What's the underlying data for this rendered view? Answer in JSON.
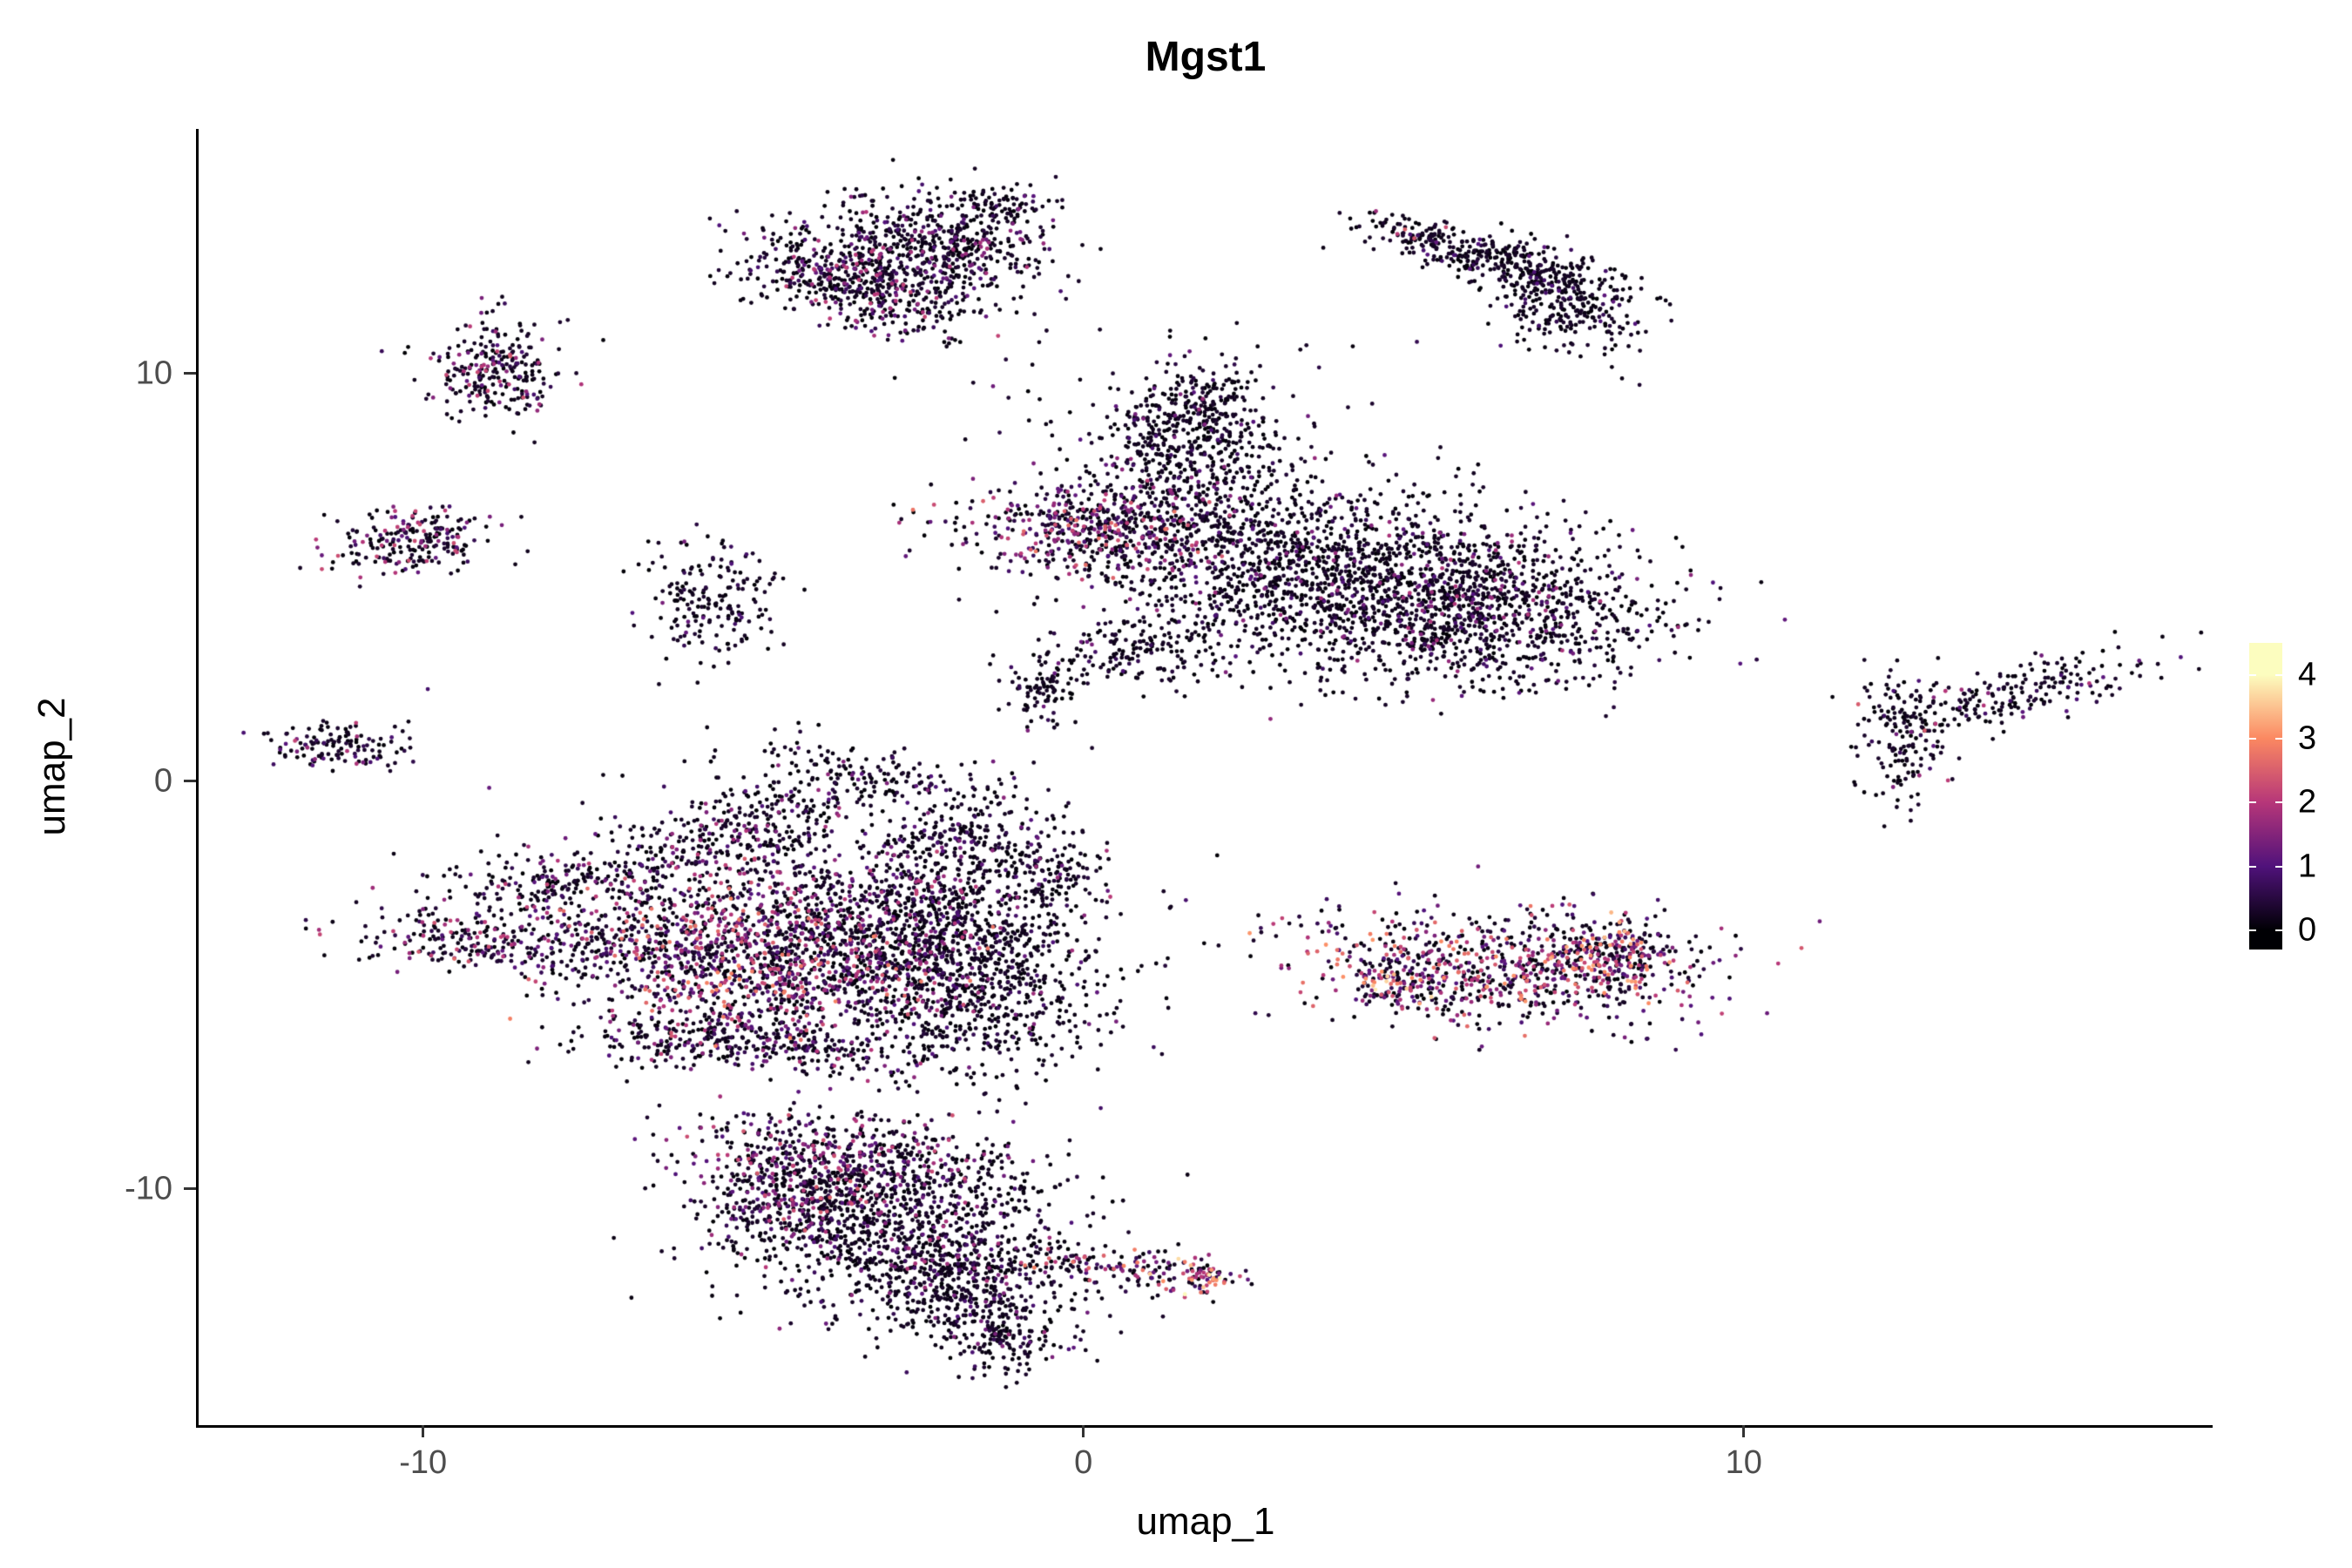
{
  "figure": {
    "title": "Mgst1",
    "xlabel": "umap_1",
    "ylabel": "umap_2"
  },
  "chart_data": {
    "type": "scatter",
    "title": "Mgst1",
    "xlabel": "umap_1",
    "ylabel": "umap_2",
    "xlim": [
      -13.4,
      17.1
    ],
    "ylim": [
      -15.8,
      16.0
    ],
    "x_ticks": [
      "-10",
      "0",
      "10"
    ],
    "x_tick_values": [
      -10,
      0,
      10
    ],
    "y_ticks": [
      "-10",
      "0",
      "10"
    ],
    "y_tick_values": [
      -10,
      0,
      10
    ],
    "grid": false,
    "legend_position": "right",
    "point_radius_px": 2.4,
    "colorbar": {
      "tick_labels": [
        "4",
        "3",
        "2",
        "1",
        "0"
      ],
      "tick_values": [
        4,
        3,
        2,
        1,
        0
      ],
      "vmin": 0,
      "vmax": 4,
      "stop_values": [
        0,
        1,
        2,
        3,
        4
      ],
      "stop_colors": [
        "#000004",
        "#50127B",
        "#B63679",
        "#FB8861",
        "#FCFDBF"
      ]
    },
    "clusters": [
      {
        "name": "top-center-a",
        "cx": -3.4,
        "cy": 12.2,
        "sx": 0.95,
        "sy": 0.5,
        "rot": -25,
        "n": 550,
        "pz": 0.55,
        "hi": 2.2
      },
      {
        "name": "top-center-b",
        "cx": -2.2,
        "cy": 13.2,
        "sx": 0.85,
        "sy": 0.55,
        "rot": -20,
        "n": 500,
        "pz": 0.6,
        "hi": 2.0
      },
      {
        "name": "top-center-tail",
        "cx": -1.2,
        "cy": 14.1,
        "sx": 0.45,
        "sy": 0.25,
        "rot": -10,
        "n": 90,
        "pz": 0.7,
        "hi": 1.5
      },
      {
        "name": "top-right-tip",
        "cx": 5.0,
        "cy": 13.5,
        "sx": 0.3,
        "sy": 0.18,
        "rot": -20,
        "n": 50,
        "pz": 0.8,
        "hi": 2.8
      },
      {
        "name": "top-right-a",
        "cx": 6.2,
        "cy": 12.8,
        "sx": 1.0,
        "sy": 0.3,
        "rot": -22,
        "n": 330,
        "pz": 0.85,
        "hi": 1.2
      },
      {
        "name": "top-right-b",
        "cx": 7.3,
        "cy": 11.7,
        "sx": 0.65,
        "sy": 0.5,
        "rot": -45,
        "n": 260,
        "pz": 0.85,
        "hi": 1.2
      },
      {
        "name": "left-upper",
        "cx": -8.9,
        "cy": 10.1,
        "sx": 0.5,
        "sy": 0.6,
        "rot": 0,
        "n": 260,
        "pz": 0.5,
        "hi": 2.5
      },
      {
        "name": "left-mid",
        "cx": -10.2,
        "cy": 5.9,
        "sx": 0.6,
        "sy": 0.38,
        "rot": 8,
        "n": 220,
        "pz": 0.5,
        "hi": 2.3
      },
      {
        "name": "left-sparse",
        "cx": -5.6,
        "cy": 4.4,
        "sx": 0.55,
        "sy": 0.8,
        "rot": 0,
        "n": 190,
        "pz": 0.8,
        "hi": 1.5
      },
      {
        "name": "left-tiny",
        "cx": -11.3,
        "cy": 0.9,
        "sx": 0.5,
        "sy": 0.3,
        "rot": 0,
        "n": 130,
        "pz": 0.6,
        "hi": 2.2
      },
      {
        "name": "central-left-pink",
        "cx": 0.2,
        "cy": 6.2,
        "sx": 1.15,
        "sy": 0.6,
        "rot": -5,
        "n": 520,
        "pz": 0.35,
        "hi": 2.8
      },
      {
        "name": "central-upper",
        "cx": 1.6,
        "cy": 7.3,
        "sx": 0.8,
        "sy": 0.9,
        "rot": 0,
        "n": 380,
        "pz": 0.7,
        "hi": 1.8
      },
      {
        "name": "central-knob",
        "cx": 1.7,
        "cy": 9.0,
        "sx": 0.55,
        "sy": 0.6,
        "rot": 0,
        "n": 260,
        "pz": 0.8,
        "hi": 1.5
      },
      {
        "name": "central-main",
        "cx": 3.6,
        "cy": 5.0,
        "sx": 1.7,
        "sy": 1.15,
        "rot": -10,
        "n": 1400,
        "pz": 0.78,
        "hi": 1.8
      },
      {
        "name": "central-right",
        "cx": 6.1,
        "cy": 4.2,
        "sx": 1.35,
        "sy": 0.95,
        "rot": -15,
        "n": 950,
        "pz": 0.75,
        "hi": 2.0
      },
      {
        "name": "central-lower-strand",
        "cx": 0.9,
        "cy": 3.2,
        "sx": 0.75,
        "sy": 0.4,
        "rot": 5,
        "n": 160,
        "pz": 0.8,
        "hi": 1.5
      },
      {
        "name": "central-small-blob",
        "cx": -0.6,
        "cy": 2.3,
        "sx": 0.3,
        "sy": 0.45,
        "rot": 0,
        "n": 90,
        "pz": 0.75,
        "hi": 1.5
      },
      {
        "name": "central-noise",
        "cx": 1.5,
        "cy": 8.3,
        "sx": 1.5,
        "sy": 1.5,
        "rot": 0,
        "n": 120,
        "pz": 0.8,
        "hi": 1.2
      },
      {
        "name": "right-branch-a",
        "cx": 12.4,
        "cy": 1.1,
        "sx": 0.35,
        "sy": 0.85,
        "rot": 0,
        "n": 170,
        "pz": 0.8,
        "hi": 2.5
      },
      {
        "name": "right-branch-b",
        "cx": 14.6,
        "cy": 2.3,
        "sx": 0.85,
        "sy": 0.35,
        "rot": 25,
        "n": 150,
        "pz": 0.8,
        "hi": 2.0
      },
      {
        "name": "right-branch-link",
        "cx": 13.4,
        "cy": 1.8,
        "sx": 0.6,
        "sy": 0.25,
        "rot": 15,
        "n": 50,
        "pz": 0.85,
        "hi": 1.2
      },
      {
        "name": "right-oval-main",
        "cx": 6.3,
        "cy": -4.6,
        "sx": 1.6,
        "sy": 0.7,
        "rot": -8,
        "n": 750,
        "pz": 0.25,
        "hi": 3.2
      },
      {
        "name": "right-oval-right",
        "cx": 8.1,
        "cy": -4.2,
        "sx": 0.5,
        "sy": 0.45,
        "rot": -30,
        "n": 220,
        "pz": 0.2,
        "hi": 3.5
      },
      {
        "name": "right-oval-left-tip",
        "cx": 4.7,
        "cy": -5.0,
        "sx": 0.35,
        "sy": 0.3,
        "rot": 0,
        "n": 90,
        "pz": 0.1,
        "hi": 4.0
      },
      {
        "name": "tangle-arc-top",
        "cx": -3.2,
        "cy": 0.2,
        "sx": 0.9,
        "sy": 0.3,
        "rot": -15,
        "n": 130,
        "pz": 0.75,
        "hi": 1.6
      },
      {
        "name": "tangle-arc-left",
        "cx": -4.9,
        "cy": -1.0,
        "sx": 0.85,
        "sy": 0.5,
        "rot": 25,
        "n": 260,
        "pz": 0.6,
        "hi": 2.0
      },
      {
        "name": "tangle-strand-upleft",
        "cx": -7.4,
        "cy": -2.3,
        "sx": 1.25,
        "sy": 0.4,
        "rot": 12,
        "n": 300,
        "pz": 0.55,
        "hi": 2.2
      },
      {
        "name": "tangle-strand-left",
        "cx": -8.8,
        "cy": -4.0,
        "sx": 1.2,
        "sy": 0.35,
        "rot": -4,
        "n": 260,
        "pz": 0.5,
        "hi": 2.5
      },
      {
        "name": "tangle-core-pink",
        "cx": -5.9,
        "cy": -3.7,
        "sx": 1.3,
        "sy": 0.8,
        "rot": 5,
        "n": 650,
        "pz": 0.3,
        "hi": 2.8
      },
      {
        "name": "tangle-ridge-magenta",
        "cx": -4.3,
        "cy": -4.8,
        "sx": 1.35,
        "sy": 0.75,
        "rot": 8,
        "n": 720,
        "pz": 0.28,
        "hi": 3.0
      },
      {
        "name": "tangle-mid",
        "cx": -3.0,
        "cy": -3.2,
        "sx": 1.2,
        "sy": 1.0,
        "rot": 0,
        "n": 700,
        "pz": 0.55,
        "hi": 2.2
      },
      {
        "name": "tangle-right-dark",
        "cx": -1.6,
        "cy": -4.8,
        "sx": 1.05,
        "sy": 1.25,
        "rot": 0,
        "n": 850,
        "pz": 0.72,
        "hi": 1.8
      },
      {
        "name": "tangle-strand-down",
        "cx": -1.9,
        "cy": -1.5,
        "sx": 0.5,
        "sy": 0.85,
        "rot": -10,
        "n": 200,
        "pz": 0.7,
        "hi": 1.6
      },
      {
        "name": "tangle-strand-right",
        "cx": -0.5,
        "cy": -2.2,
        "sx": 0.4,
        "sy": 0.6,
        "rot": 10,
        "n": 120,
        "pz": 0.75,
        "hi": 1.4
      },
      {
        "name": "tangle-lower-strand-a",
        "cx": -5.9,
        "cy": -6.3,
        "sx": 0.95,
        "sy": 0.35,
        "rot": 8,
        "n": 210,
        "pz": 0.55,
        "hi": 2.2
      },
      {
        "name": "tangle-lower-strand-b",
        "cx": -4.0,
        "cy": -6.6,
        "sx": 0.85,
        "sy": 0.3,
        "rot": -6,
        "n": 160,
        "pz": 0.6,
        "hi": 2.0
      },
      {
        "name": "tangle-noise",
        "cx": -4.5,
        "cy": -2.5,
        "sx": 2.5,
        "sy": 2.0,
        "rot": 0,
        "n": 150,
        "pz": 0.7,
        "hi": 1.5
      },
      {
        "name": "bottom-top-band",
        "cx": -3.7,
        "cy": -9.1,
        "sx": 1.15,
        "sy": 0.5,
        "rot": -8,
        "n": 420,
        "pz": 0.45,
        "hi": 2.4
      },
      {
        "name": "bottom-main",
        "cx": -2.9,
        "cy": -10.9,
        "sx": 1.3,
        "sy": 0.95,
        "rot": 0,
        "n": 950,
        "pz": 0.7,
        "hi": 2.0
      },
      {
        "name": "bottom-left-pink",
        "cx": -4.5,
        "cy": -10.2,
        "sx": 0.6,
        "sy": 0.6,
        "rot": 0,
        "n": 300,
        "pz": 0.4,
        "hi": 2.6
      },
      {
        "name": "bottom-lower",
        "cx": -1.9,
        "cy": -12.4,
        "sx": 0.85,
        "sy": 0.75,
        "rot": 30,
        "n": 420,
        "pz": 0.72,
        "hi": 1.8
      },
      {
        "name": "bottom-tail",
        "cx": -1.1,
        "cy": -13.7,
        "sx": 0.5,
        "sy": 0.45,
        "rot": 20,
        "n": 160,
        "pz": 0.75,
        "hi": 1.5
      },
      {
        "name": "bottom-bridge",
        "cx": 0.5,
        "cy": -11.9,
        "sx": 0.75,
        "sy": 0.25,
        "rot": -5,
        "n": 130,
        "pz": 0.35,
        "hi": 3.0
      },
      {
        "name": "bottom-orange-tip",
        "cx": 1.8,
        "cy": -12.2,
        "sx": 0.3,
        "sy": 0.22,
        "rot": 0,
        "n": 70,
        "pz": 0.05,
        "hi": 4.0
      }
    ]
  }
}
